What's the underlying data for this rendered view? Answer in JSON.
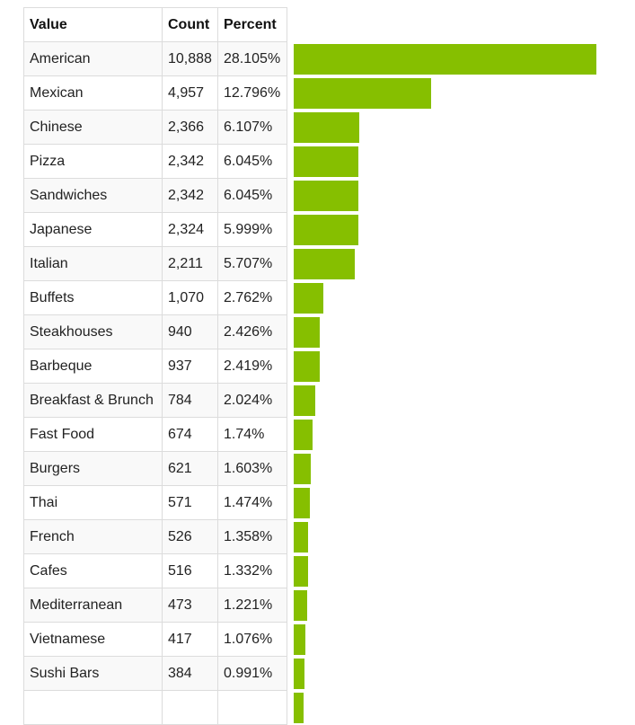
{
  "table": {
    "headers": {
      "value": "Value",
      "count": "Count",
      "percent": "Percent"
    }
  },
  "bar_color": "#86bf00",
  "chart_data": {
    "type": "bar",
    "orientation": "horizontal",
    "columns": [
      "Value",
      "Count",
      "Percent"
    ],
    "categories": [
      "American",
      "Mexican",
      "Chinese",
      "Pizza",
      "Sandwiches",
      "Japanese",
      "Italian",
      "Buffets",
      "Steakhouses",
      "Barbeque",
      "Breakfast & Brunch",
      "Fast Food",
      "Burgers",
      "Thai",
      "French",
      "Cafes",
      "Mediterranean",
      "Vietnamese",
      "Sushi Bars"
    ],
    "counts": [
      "10,888",
      "4,957",
      "2,366",
      "2,342",
      "2,342",
      "2,324",
      "2,211",
      "1,070",
      "940",
      "937",
      "784",
      "674",
      "621",
      "571",
      "526",
      "516",
      "473",
      "417",
      "384"
    ],
    "percents": [
      "28.105%",
      "12.796%",
      "6.107%",
      "6.045%",
      "6.045%",
      "5.999%",
      "5.707%",
      "2.762%",
      "2.426%",
      "2.419%",
      "2.024%",
      "1.74%",
      "1.603%",
      "1.474%",
      "1.358%",
      "1.332%",
      "1.221%",
      "1.076%",
      "0.991%"
    ],
    "values": [
      10888,
      4957,
      2366,
      2342,
      2342,
      2324,
      2211,
      1070,
      940,
      937,
      784,
      674,
      621,
      571,
      526,
      516,
      473,
      417,
      384
    ],
    "partial_trailing_row": true,
    "partial_trailing_value": 340
  }
}
